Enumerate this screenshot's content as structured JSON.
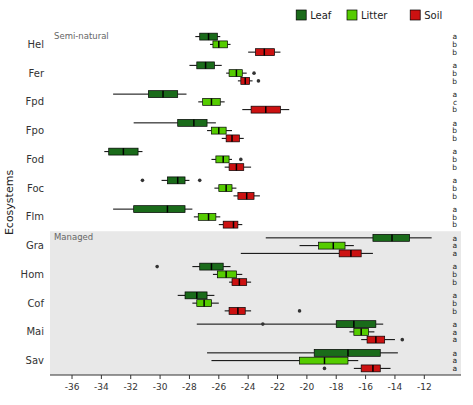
{
  "chart_data": {
    "type": "box",
    "orientation": "horizontal",
    "y_label": "Ecosystems",
    "categories": [
      "Hel",
      "Fer",
      "Fpd",
      "Fpo",
      "Fod",
      "Foc",
      "Flm",
      "Gra",
      "Hom",
      "Cof",
      "Mai",
      "Sav"
    ],
    "regions": [
      {
        "label": "Semi-natural",
        "categories": [
          "Hel",
          "Fer",
          "Fpd",
          "Fpo",
          "Fod",
          "Foc",
          "Flm"
        ],
        "color": "#ffffff"
      },
      {
        "label": "Managed",
        "categories": [
          "Gra",
          "Hom",
          "Cof",
          "Mai",
          "Sav"
        ],
        "color": "#e8e8e8"
      }
    ],
    "xlim": [
      -37.5,
      -9.5
    ],
    "xticks": [
      -36,
      -34,
      -32,
      -30,
      -28,
      -26,
      -24,
      -22,
      -20,
      -18,
      -16,
      -14,
      -12
    ],
    "legend": "upper right",
    "series": [
      {
        "name": "Leaf",
        "color": "#1a6b1a",
        "letters": [
          "a",
          "a",
          "a",
          "a",
          "a",
          "a",
          "a",
          "a",
          "a",
          "a",
          "a",
          "a"
        ],
        "boxes": [
          {
            "q1": -27.3,
            "med": -26.7,
            "q3": -26.1,
            "wlo": -27.6,
            "whi": -25.9
          },
          {
            "q1": -27.5,
            "med": -26.9,
            "q3": -26.3,
            "wlo": -28.0,
            "whi": -25.8
          },
          {
            "q1": -30.8,
            "med": -29.8,
            "q3": -28.8,
            "wlo": -33.2,
            "whi": -28.2
          },
          {
            "q1": -28.8,
            "med": -27.7,
            "q3": -26.8,
            "wlo": -31.8,
            "whi": -26.2
          },
          {
            "q1": -33.5,
            "med": -32.5,
            "q3": -31.5,
            "wlo": -33.8,
            "whi": -31.2
          },
          {
            "q1": -29.5,
            "med": -28.8,
            "q3": -28.3,
            "wlo": -29.9,
            "whi": -28.0,
            "outliers": [
              -31.2,
              -27.3
            ]
          },
          {
            "q1": -31.8,
            "med": -29.5,
            "q3": -28.3,
            "wlo": -33.2,
            "whi": -27.8
          },
          {
            "q1": -15.5,
            "med": -14.2,
            "q3": -13.0,
            "wlo": -22.8,
            "whi": -11.5
          },
          {
            "q1": -27.3,
            "med": -26.5,
            "q3": -25.7,
            "wlo": -27.8,
            "whi": -25.2,
            "outliers": [
              -30.2
            ]
          },
          {
            "q1": -28.3,
            "med": -27.5,
            "q3": -26.8,
            "wlo": -28.8,
            "whi": -26.3
          },
          {
            "q1": -18.0,
            "med": -16.8,
            "q3": -15.3,
            "wlo": -27.5,
            "whi": -14.8,
            "outliers": [
              -23.0
            ]
          },
          {
            "q1": -19.5,
            "med": -17.2,
            "q3": -15.0,
            "wlo": -26.8,
            "whi": -13.8
          }
        ]
      },
      {
        "name": "Litter",
        "color": "#55cc00",
        "letters": [
          "b",
          "b",
          "c",
          "b",
          "b",
          "b",
          "b",
          "a",
          "b",
          "b",
          "a",
          "a"
        ],
        "boxes": [
          {
            "q1": -26.4,
            "med": -26.0,
            "q3": -25.4,
            "wlo": -26.6,
            "whi": -25.2
          },
          {
            "q1": -25.3,
            "med": -24.8,
            "q3": -24.4,
            "wlo": -25.5,
            "whi": -24.1,
            "outliers": [
              -23.6
            ]
          },
          {
            "q1": -27.1,
            "med": -26.5,
            "q3": -25.9,
            "wlo": -27.4,
            "whi": -25.6
          },
          {
            "q1": -26.5,
            "med": -26.0,
            "q3": -25.5,
            "wlo": -26.8,
            "whi": -25.1
          },
          {
            "q1": -26.2,
            "med": -25.7,
            "q3": -25.3,
            "wlo": -26.5,
            "whi": -25.1,
            "outliers": [
              -24.5
            ]
          },
          {
            "q1": -26.0,
            "med": -25.5,
            "q3": -25.1,
            "wlo": -26.3,
            "whi": -24.8
          },
          {
            "q1": -27.4,
            "med": -26.7,
            "q3": -26.2,
            "wlo": -27.7,
            "whi": -25.9
          },
          {
            "q1": -19.2,
            "med": -18.2,
            "q3": -17.4,
            "wlo": -20.5,
            "whi": -16.8
          },
          {
            "q1": -26.1,
            "med": -25.5,
            "q3": -24.8,
            "wlo": -26.4,
            "whi": -24.4
          },
          {
            "q1": -27.5,
            "med": -27.0,
            "q3": -26.5,
            "wlo": -27.8,
            "whi": -26.0
          },
          {
            "q1": -16.8,
            "med": -16.3,
            "q3": -15.8,
            "wlo": -17.1,
            "whi": -15.4
          },
          {
            "q1": -20.5,
            "med": -18.8,
            "q3": -17.2,
            "wlo": -26.5,
            "whi": -16.5
          }
        ]
      },
      {
        "name": "Soil",
        "color": "#cc1111",
        "letters": [
          "b",
          "b",
          "b",
          "b",
          "b",
          "b",
          "b",
          "a",
          "b",
          "b",
          "a",
          "a"
        ],
        "boxes": [
          {
            "q1": -23.5,
            "med": -22.9,
            "q3": -22.2,
            "wlo": -24.0,
            "whi": -21.8
          },
          {
            "q1": -24.5,
            "med": -24.2,
            "q3": -23.9,
            "wlo": -24.7,
            "whi": -23.7,
            "outliers": [
              -23.3
            ]
          },
          {
            "q1": -23.8,
            "med": -22.8,
            "q3": -21.8,
            "wlo": -24.4,
            "whi": -21.2
          },
          {
            "q1": -25.5,
            "med": -25.1,
            "q3": -24.6,
            "wlo": -25.8,
            "whi": -24.3
          },
          {
            "q1": -25.3,
            "med": -24.8,
            "q3": -24.3,
            "wlo": -25.6,
            "whi": -23.8
          },
          {
            "q1": -24.7,
            "med": -24.1,
            "q3": -23.6,
            "wlo": -25.0,
            "whi": -23.2
          },
          {
            "q1": -25.7,
            "med": -25.0,
            "q3": -24.7,
            "wlo": -26.0,
            "whi": -24.4
          },
          {
            "q1": -17.8,
            "med": -17.0,
            "q3": -16.3,
            "wlo": -24.5,
            "whi": -15.5
          },
          {
            "q1": -25.1,
            "med": -24.6,
            "q3": -24.1,
            "wlo": -25.3,
            "whi": -23.8
          },
          {
            "q1": -25.3,
            "med": -24.7,
            "q3": -24.2,
            "wlo": -25.6,
            "whi": -23.8,
            "outliers": [
              -20.5
            ]
          },
          {
            "q1": -15.9,
            "med": -15.3,
            "q3": -14.7,
            "wlo": -16.3,
            "whi": -14.0,
            "outliers": [
              -13.5
            ]
          },
          {
            "q1": -16.3,
            "med": -15.5,
            "q3": -15.0,
            "wlo": -16.8,
            "whi": -14.3,
            "outliers": [
              -18.8
            ]
          }
        ]
      }
    ]
  }
}
